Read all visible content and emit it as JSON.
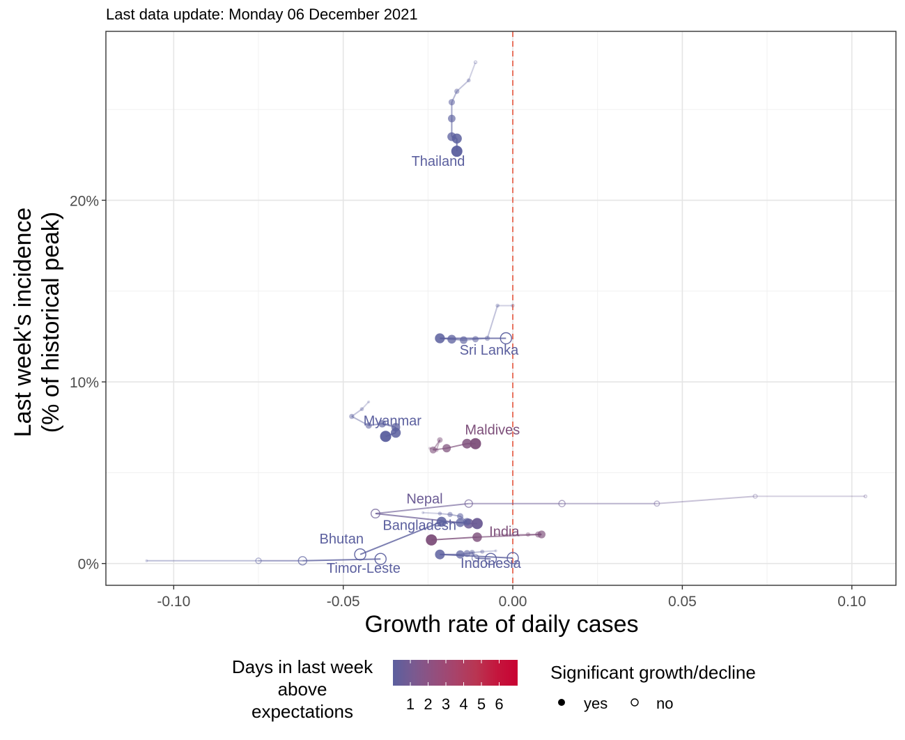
{
  "subtitle": "Last data update: Monday 06 December 2021",
  "chart_data": {
    "type": "scatter",
    "xlabel": "Growth rate of daily cases",
    "ylabel_lines": [
      "Last week's incidence",
      "(% of historical peak)"
    ],
    "xlim": [
      -0.12,
      0.113
    ],
    "ylim": [
      -1.2,
      29.3
    ],
    "x_ticks": [
      -0.1,
      -0.05,
      0.0,
      0.05,
      0.1
    ],
    "x_tick_labels": [
      "-0.10",
      "-0.05",
      "0.00",
      "0.05",
      "0.10"
    ],
    "y_ticks": [
      0,
      10,
      20
    ],
    "y_tick_labels": [
      "0%",
      "10%",
      "20%"
    ],
    "reference_line_x": 0,
    "reference_line_color": "#e8735f",
    "countries": [
      {
        "name": "Thailand",
        "color": "#5b5f9e",
        "label_x": -0.022,
        "label_y": 21.9,
        "points": [
          [
            -0.011,
            27.6,
            "no"
          ],
          [
            -0.013,
            26.6,
            "yes"
          ],
          [
            -0.0165,
            26.0,
            "yes"
          ],
          [
            -0.018,
            25.4,
            "yes"
          ],
          [
            -0.018,
            24.5,
            "yes"
          ],
          [
            -0.018,
            23.5,
            "yes"
          ],
          [
            -0.0165,
            23.4,
            "yes"
          ],
          [
            -0.0165,
            22.7,
            "yes"
          ]
        ]
      },
      {
        "name": "Sri Lanka",
        "color": "#5b5f9e",
        "label_x": -0.007,
        "label_y": 11.5,
        "points": [
          [
            0.0,
            14.2,
            "no"
          ],
          [
            -0.0045,
            14.2,
            "yes"
          ],
          [
            -0.0075,
            12.4,
            "yes"
          ],
          [
            -0.011,
            12.35,
            "yes"
          ],
          [
            -0.0145,
            12.3,
            "yes"
          ],
          [
            -0.018,
            12.35,
            "yes"
          ],
          [
            -0.0215,
            12.4,
            "yes"
          ],
          [
            -0.002,
            12.4,
            "no"
          ]
        ]
      },
      {
        "name": "Myanmar",
        "color": "#5b5f9e",
        "label_x": -0.0355,
        "label_y": 7.6,
        "points": [
          [
            -0.0425,
            8.9,
            "yes"
          ],
          [
            -0.0445,
            8.5,
            "yes"
          ],
          [
            -0.0475,
            8.1,
            "yes"
          ],
          [
            -0.0425,
            7.6,
            "yes"
          ],
          [
            -0.0385,
            7.7,
            "yes"
          ],
          [
            -0.0345,
            7.5,
            "yes"
          ],
          [
            -0.0345,
            7.2,
            "yes"
          ],
          [
            -0.0375,
            7.0,
            "yes"
          ]
        ]
      },
      {
        "name": "Maldives",
        "color": "#7d4f7a",
        "label_x": -0.006,
        "label_y": 7.1,
        "points": [
          [
            -0.0245,
            6.35,
            "yes"
          ],
          [
            -0.0225,
            6.25,
            "yes"
          ],
          [
            -0.0215,
            6.8,
            "yes"
          ],
          [
            -0.0235,
            6.25,
            "yes"
          ],
          [
            -0.0195,
            6.35,
            "yes"
          ],
          [
            -0.0135,
            6.6,
            "yes"
          ],
          [
            -0.011,
            6.6,
            "yes"
          ]
        ]
      },
      {
        "name": "Nepal",
        "color": "#6b5b94",
        "label_x": -0.026,
        "label_y": 3.3,
        "points": [
          [
            0.104,
            3.7,
            "no"
          ],
          [
            0.0715,
            3.7,
            "no"
          ],
          [
            0.0425,
            3.3,
            "no"
          ],
          [
            0.0145,
            3.3,
            "no"
          ],
          [
            -0.013,
            3.3,
            "no"
          ],
          [
            -0.0405,
            2.75,
            "no"
          ],
          [
            -0.013,
            2.2,
            "yes"
          ],
          [
            -0.0105,
            2.2,
            "yes"
          ]
        ]
      },
      {
        "name": "Bangladesh",
        "color": "#5b5f9e",
        "label_x": -0.0275,
        "label_y": 1.85,
        "points": [
          [
            -0.0265,
            2.8,
            "yes"
          ],
          [
            -0.0215,
            2.75,
            "yes"
          ],
          [
            -0.0185,
            2.7,
            "yes"
          ],
          [
            -0.0155,
            2.6,
            "yes"
          ],
          [
            -0.0135,
            2.3,
            "yes"
          ],
          [
            -0.0155,
            2.25,
            "yes"
          ],
          [
            -0.021,
            2.3,
            "yes"
          ],
          [
            -0.045,
            0.5,
            "no"
          ]
        ]
      },
      {
        "name": "India",
        "color": "#7d4f7a",
        "label_x": -0.0025,
        "label_y": 1.5,
        "points": [
          [
            -0.005,
            1.6,
            "yes"
          ],
          [
            0.0045,
            1.6,
            "yes"
          ],
          [
            0.0075,
            1.6,
            "yes"
          ],
          [
            0.0085,
            1.6,
            "yes"
          ],
          [
            -0.0105,
            1.45,
            "yes"
          ],
          [
            -0.024,
            1.3,
            "yes"
          ]
        ]
      },
      {
        "name": "Bhutan",
        "color": "#5b5f9e",
        "label_x": -0.0505,
        "label_y": 1.1,
        "points": [
          [
            -0.108,
            0.15,
            "yes"
          ],
          [
            -0.075,
            0.15,
            "no"
          ],
          [
            -0.062,
            0.15,
            "no"
          ],
          [
            -0.039,
            0.25,
            "no"
          ]
        ]
      },
      {
        "name": "Timor-Leste",
        "color": "#5b5f9e",
        "label_x": -0.044,
        "label_y": -0.5,
        "points": [
          [
            -0.012,
            0.6,
            "yes"
          ],
          [
            -0.011,
            0.3,
            "no"
          ],
          [
            -0.0065,
            0.25,
            "no"
          ]
        ]
      },
      {
        "name": "Indonesia",
        "color": "#5b5f9e",
        "label_x": -0.0065,
        "label_y": -0.25,
        "points": [
          [
            -0.005,
            0.7,
            "yes"
          ],
          [
            -0.009,
            0.65,
            "yes"
          ],
          [
            -0.012,
            0.6,
            "yes"
          ],
          [
            -0.0135,
            0.55,
            "yes"
          ],
          [
            -0.0155,
            0.5,
            "yes"
          ],
          [
            -0.0215,
            0.5,
            "yes"
          ],
          [
            0.0,
            0.3,
            "no"
          ]
        ]
      }
    ],
    "legend_color": {
      "title_lines": [
        "Days in last week",
        "above",
        "expectations"
      ],
      "labels": [
        "1",
        "2",
        "3",
        "4",
        "5",
        "6"
      ],
      "colors": [
        "#5b5f9e",
        "#7a5a90",
        "#934f7e",
        "#a8436a",
        "#b93552",
        "#c4163d",
        "#c80232"
      ]
    },
    "legend_shape": {
      "title": "Significant growth/decline",
      "items": [
        "yes",
        "no"
      ]
    }
  }
}
